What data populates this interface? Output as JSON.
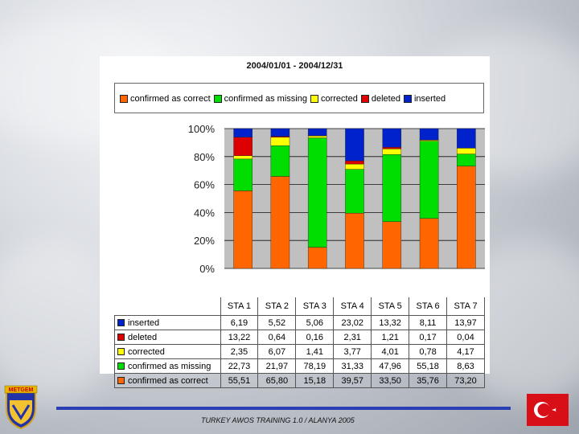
{
  "chart_data": {
    "type": "bar",
    "stacked": true,
    "title": "2004/01/01 - 2004/12/31",
    "categories": [
      "STA 1",
      "STA 2",
      "STA 3",
      "STA 4",
      "STA 5",
      "STA 6",
      "STA 7"
    ],
    "series": [
      {
        "name": "confirmed as correct",
        "color": "#ff6600",
        "values": [
          55.51,
          65.8,
          15.18,
          39.57,
          33.5,
          35.76,
          73.2
        ]
      },
      {
        "name": "confirmed as missing",
        "color": "#00dd00",
        "values": [
          22.73,
          21.97,
          78.19,
          31.33,
          47.96,
          55.18,
          8.63
        ]
      },
      {
        "name": "corrected",
        "color": "#ffff00",
        "values": [
          2.35,
          6.07,
          1.41,
          3.77,
          4.01,
          0.78,
          4.17
        ]
      },
      {
        "name": "deleted",
        "color": "#dd0000",
        "values": [
          13.22,
          0.64,
          0.16,
          2.31,
          1.21,
          0.17,
          0.04
        ]
      },
      {
        "name": "inserted",
        "color": "#0022cc",
        "values": [
          6.19,
          5.52,
          5.06,
          23.02,
          13.32,
          8.11,
          13.97
        ]
      }
    ],
    "table_labels": {
      "confirmed as correct": [
        "55,51",
        "65,80",
        "15,18",
        "39,57",
        "33,50",
        "35,76",
        "73,20"
      ],
      "confirmed as missing": [
        "22,73",
        "21,97",
        "78,19",
        "31,33",
        "47,96",
        "55,18",
        "8,63"
      ],
      "corrected": [
        "2,35",
        "6,07",
        "1,41",
        "3,77",
        "4,01",
        "0,78",
        "4,17"
      ],
      "deleted": [
        "13,22",
        "0,64",
        "0,16",
        "2,31",
        "1,21",
        "0,17",
        "0,04"
      ],
      "inserted": [
        "6,19",
        "5,52",
        "5,06",
        "23,02",
        "13,32",
        "8,11",
        "13,97"
      ]
    },
    "table_row_order": [
      "inserted",
      "deleted",
      "corrected",
      "confirmed as missing",
      "confirmed as correct"
    ],
    "yticks": [
      "0%",
      "20%",
      "40%",
      "60%",
      "80%",
      "100%"
    ],
    "ylim": [
      0,
      100
    ],
    "grid": true,
    "plot_background": "#c0c0c0",
    "legend_position": "top"
  },
  "logo_text": "METGEM",
  "footer": {
    "text": "TURKEY AWOS TRAINING 1.0 / ALANYA 2005"
  },
  "colors": {
    "footer_line": "#2a3fb4",
    "flag_red": "#d90f18"
  }
}
